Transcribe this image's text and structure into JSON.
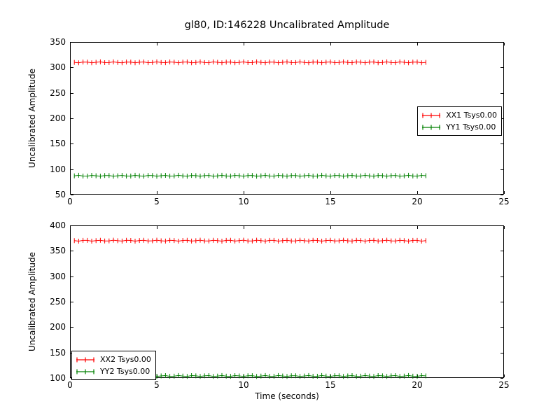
{
  "figure_title": "gl80, ID:146228 Uncalibrated Amplitude",
  "background_color": "#ffffff",
  "frame_color": "#000000",
  "chart_data": [
    {
      "type": "line",
      "subplot": "top",
      "title": "gl80, ID:146228 Uncalibrated Amplitude",
      "xlabel": "",
      "ylabel": "Uncalibrated Amplitude",
      "xlim": [
        0,
        25
      ],
      "ylim": [
        50,
        350
      ],
      "xticks": [
        0,
        5,
        10,
        15,
        20,
        25
      ],
      "yticks": [
        50,
        100,
        150,
        200,
        250,
        300,
        350
      ],
      "grid": false,
      "marker": "vertical-errorbar-tick",
      "x_start": 0.25,
      "x_end": 20.5,
      "x_step": 0.25,
      "series": [
        {
          "name": "XX1 Tsys0.00",
          "color": "#ff0000",
          "y_constant": 310
        },
        {
          "name": "YY1 Tsys0.00",
          "color": "#008000",
          "y_constant": 87
        }
      ],
      "legend_position": "center right"
    },
    {
      "type": "line",
      "subplot": "bottom",
      "title": "",
      "xlabel": "Time (seconds)",
      "ylabel": "Uncalibrated Amplitude",
      "xlim": [
        0,
        25
      ],
      "ylim": [
        100,
        400
      ],
      "xticks": [
        0,
        5,
        10,
        15,
        20,
        25
      ],
      "yticks": [
        100,
        150,
        200,
        250,
        300,
        350,
        400
      ],
      "grid": false,
      "marker": "vertical-errorbar-tick",
      "x_start": 0.25,
      "x_end": 20.5,
      "x_step": 0.25,
      "series": [
        {
          "name": "XX2 Tsys0.00",
          "color": "#ff0000",
          "y_constant": 370
        },
        {
          "name": "YY2 Tsys0.00",
          "color": "#008000",
          "y_constant": 104
        }
      ],
      "legend_position": "lower left"
    }
  ]
}
